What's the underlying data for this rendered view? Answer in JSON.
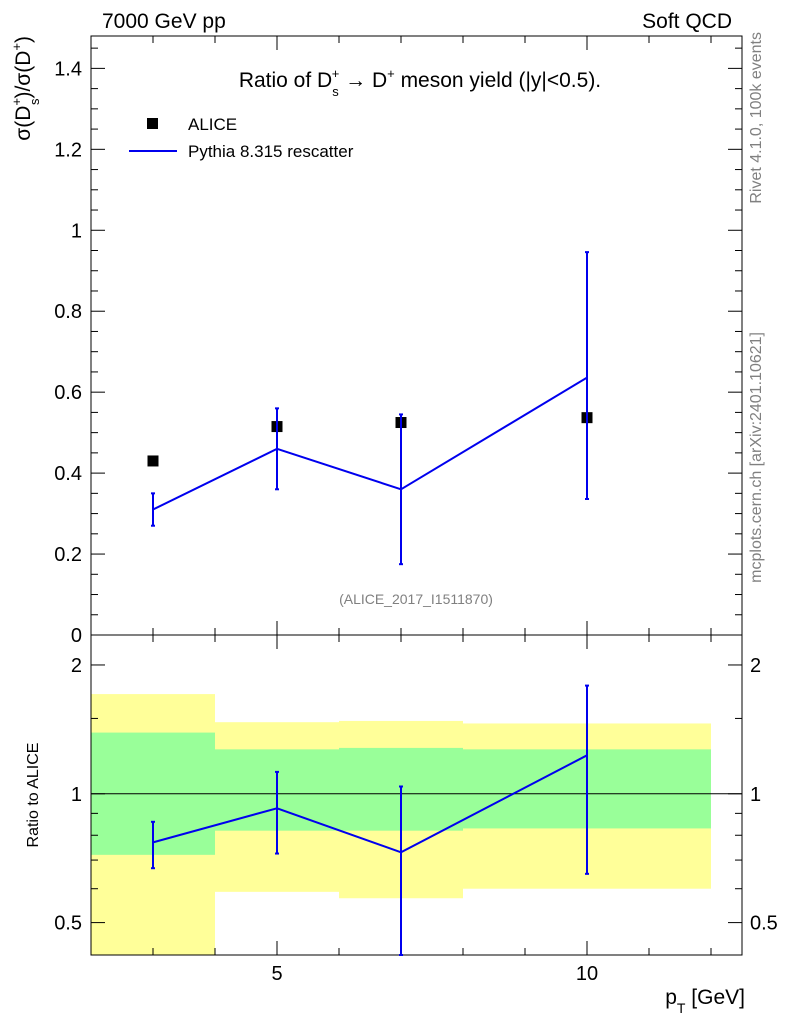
{
  "header": {
    "left": "7000 GeV pp",
    "right": "Soft QCD"
  },
  "side": {
    "rivet": "Rivet 4.1.0,  100k events",
    "mcplots": "mcplots.cern.ch [arXiv:2401.10621]"
  },
  "chart_data": {
    "type": "scatter",
    "title": "Ratio of D_s^+ → D^+ meson yield (|y|<0.5).",
    "title_parts": {
      "pre": "Ratio of D",
      "sub": "s",
      "sup": "+",
      "mid": " → D",
      "sup2": "+",
      "post": " meson yield (|y|<0.5)."
    },
    "ylabel": "σ(D_s^+)/σ(D^+)",
    "ylabel_parts": {
      "a": "σ(D",
      "sup": "+",
      "sub": "s",
      "b": ")/σ(D",
      "sup2": "+",
      "c": ")"
    },
    "xlabel": "p_T [GeV]",
    "xlabel_parts": {
      "a": "p",
      "sub": "T",
      "b": " [GeV]"
    },
    "watermark": "(ALICE_2017_I1511870)",
    "xlim": [
      2,
      12.5
    ],
    "ylim": [
      0,
      1.48
    ],
    "x_ticks": [
      5,
      10
    ],
    "x_tick_labels": [
      "5",
      "10"
    ],
    "y_ticks": [
      0,
      0.2,
      0.4,
      0.6,
      0.8,
      1,
      1.2,
      1.4
    ],
    "y_tick_labels": [
      "0",
      "0.2",
      "0.4",
      "0.6",
      "0.8",
      "1",
      "1.2",
      "1.4"
    ],
    "legend": {
      "position": "top-left",
      "entries": [
        {
          "label": "ALICE",
          "marker": "square",
          "color": "#000000"
        },
        {
          "label": "Pythia 8.315 rescatter",
          "marker": "line",
          "color": "#0000ee"
        }
      ]
    },
    "series": [
      {
        "name": "ALICE",
        "x": [
          3,
          5,
          7,
          10
        ],
        "y": [
          0.43,
          0.515,
          0.525,
          0.537
        ],
        "xbins": [
          [
            2,
            4
          ],
          [
            4,
            6
          ],
          [
            6,
            8
          ],
          [
            8,
            12
          ]
        ]
      },
      {
        "name": "Pythia 8.315 rescatter",
        "x": [
          3,
          5,
          7,
          10
        ],
        "y": [
          0.31,
          0.46,
          0.36,
          0.636
        ],
        "yerr_low": [
          0.04,
          0.1,
          0.185,
          0.3
        ],
        "yerr_high": [
          0.04,
          0.1,
          0.185,
          0.31
        ]
      }
    ],
    "ratio": {
      "ylabel": "Ratio to ALICE",
      "ylim_log": [
        0.42,
        2.35
      ],
      "y_ticks": [
        0.5,
        1,
        2
      ],
      "y_tick_labels": [
        "0.5",
        "1",
        "2"
      ],
      "bands": [
        {
          "xlo": 2,
          "xhi": 4,
          "stat_lo": 0.72,
          "stat_hi": 1.39,
          "tot_lo": 0.39,
          "tot_hi": 1.71
        },
        {
          "xlo": 4,
          "xhi": 6,
          "stat_lo": 0.82,
          "stat_hi": 1.27,
          "tot_lo": 0.59,
          "tot_hi": 1.47
        },
        {
          "xlo": 6,
          "xhi": 8,
          "stat_lo": 0.82,
          "stat_hi": 1.28,
          "tot_lo": 0.57,
          "tot_hi": 1.48
        },
        {
          "xlo": 8,
          "xhi": 12,
          "stat_lo": 0.83,
          "stat_hi": 1.27,
          "tot_lo": 0.6,
          "tot_hi": 1.46
        }
      ],
      "mc": {
        "x": [
          3,
          5,
          7,
          10
        ],
        "y": [
          0.77,
          0.925,
          0.73,
          1.23
        ],
        "yerr_low": [
          0.1,
          0.2,
          0.35,
          0.58
        ],
        "yerr_high": [
          0.09,
          0.2,
          0.31,
          0.56
        ]
      }
    },
    "colors": {
      "data": "#000000",
      "mc": "#0000ee",
      "stat_band": "#99ff99",
      "tot_band": "#ffff99"
    }
  }
}
